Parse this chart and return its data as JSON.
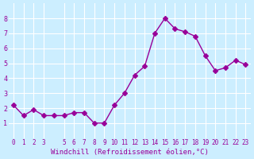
{
  "x": [
    0,
    1,
    2,
    3,
    4,
    5,
    6,
    7,
    8,
    9,
    10,
    11,
    12,
    13,
    14,
    15,
    16,
    17,
    18,
    19,
    20,
    21,
    22,
    23
  ],
  "y": [
    2.2,
    1.5,
    1.9,
    1.5,
    1.5,
    1.5,
    1.7,
    1.7,
    1.0,
    1.0,
    2.2,
    3.0,
    4.2,
    4.8,
    7.0,
    8.0,
    7.3,
    7.1,
    6.8,
    5.5,
    4.5,
    4.7,
    5.2,
    4.9
  ],
  "line_color": "#990099",
  "marker": "D",
  "marker_size": 3,
  "bg_color": "#cceeff",
  "grid_color": "#ffffff",
  "xlabel": "Windchill (Refroidissement éolien,°C)",
  "xlabel_color": "#990099",
  "tick_color": "#990099",
  "ylim": [
    0,
    9
  ],
  "xlim": [
    -0.5,
    23.5
  ],
  "yticks": [
    1,
    2,
    3,
    4,
    5,
    6,
    7,
    8
  ],
  "xticks": [
    0,
    1,
    2,
    3,
    5,
    6,
    7,
    8,
    9,
    10,
    11,
    12,
    13,
    14,
    15,
    16,
    17,
    18,
    19,
    20,
    21,
    22,
    23
  ],
  "xtick_labels": [
    "0",
    "1",
    "2",
    "3",
    "5",
    "6",
    "7",
    "8",
    "9",
    "10",
    "11",
    "12",
    "13",
    "14",
    "15",
    "16",
    "17",
    "18",
    "19",
    "20",
    "21",
    "22",
    "23"
  ]
}
